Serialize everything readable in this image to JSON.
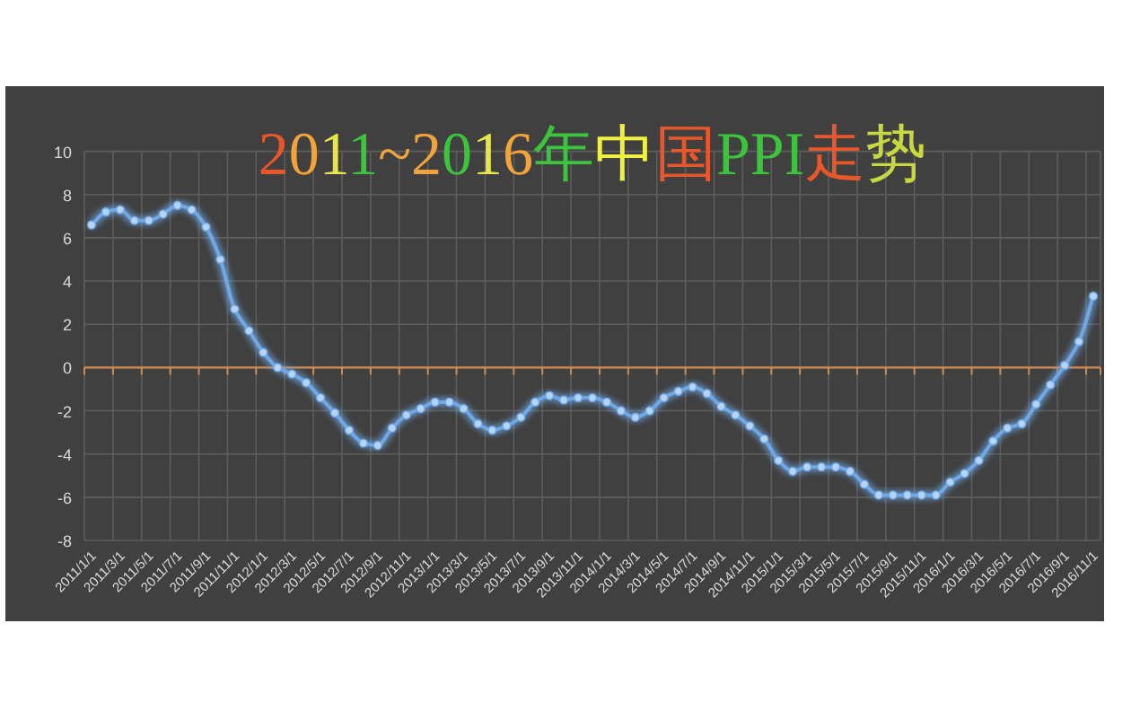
{
  "chart_data": {
    "type": "line",
    "title": "2011~2016年中国PPI走势",
    "categories": [
      "2011/1/1",
      null,
      "2011/3/1",
      null,
      "2011/5/1",
      null,
      "2011/7/1",
      null,
      "2011/9/1",
      null,
      "2011/11/1",
      null,
      "2012/1/1",
      null,
      "2012/3/1",
      null,
      "2012/5/1",
      null,
      "2012/7/1",
      null,
      "2012/9/1",
      null,
      "2012/11/1",
      null,
      "2013/1/1",
      null,
      "2013/3/1",
      null,
      "2013/5/1",
      null,
      "2013/7/1",
      null,
      "2013/9/1",
      null,
      "2013/11/1",
      null,
      "2014/1/1",
      null,
      "2014/3/1",
      null,
      "2014/5/1",
      null,
      "2014/7/1",
      null,
      "2014/9/1",
      null,
      "2014/11/1",
      null,
      "2015/1/1",
      null,
      "2015/3/1",
      null,
      "2015/5/1",
      null,
      "2015/7/1",
      null,
      "2015/9/1",
      null,
      "2015/11/1",
      null,
      "2016/1/1",
      null,
      "2016/3/1",
      null,
      "2016/5/1",
      null,
      "2016/7/1",
      null,
      "2016/9/1",
      null,
      "2016/11/1"
    ],
    "series": [
      {
        "color": "#6fa8e6",
        "values": [
          6.6,
          7.2,
          7.3,
          6.8,
          6.8,
          7.1,
          7.5,
          7.3,
          6.5,
          5.0,
          2.7,
          1.7,
          0.7,
          0.0,
          -0.3,
          -0.7,
          -1.4,
          -2.1,
          -2.9,
          -3.5,
          -3.6,
          -2.8,
          -2.2,
          -1.9,
          -1.6,
          -1.6,
          -1.9,
          -2.6,
          -2.9,
          -2.7,
          -2.3,
          -1.6,
          -1.3,
          -1.5,
          -1.4,
          -1.4,
          -1.6,
          -2.0,
          -2.3,
          -2.0,
          -1.4,
          -1.1,
          -0.9,
          -1.2,
          -1.8,
          -2.2,
          -2.7,
          -3.3,
          -4.3,
          -4.8,
          -4.6,
          -4.6,
          -4.6,
          -4.8,
          -5.4,
          -5.9,
          -5.9,
          -5.9,
          -5.9,
          -5.9,
          -5.3,
          -4.9,
          -4.3,
          -3.4,
          -2.8,
          -2.6,
          -1.7,
          -0.8,
          0.1,
          1.2,
          3.3
        ]
      }
    ],
    "ylim": [
      -8,
      10
    ],
    "yticks": [
      -8,
      -6,
      -4,
      -2,
      0,
      2,
      4,
      6,
      8,
      10
    ],
    "ref_lines": [
      {
        "axis": "y",
        "value": 0,
        "color": "#d08a50"
      }
    ],
    "grid": true,
    "marker": "circle",
    "line_style": "solid"
  }
}
